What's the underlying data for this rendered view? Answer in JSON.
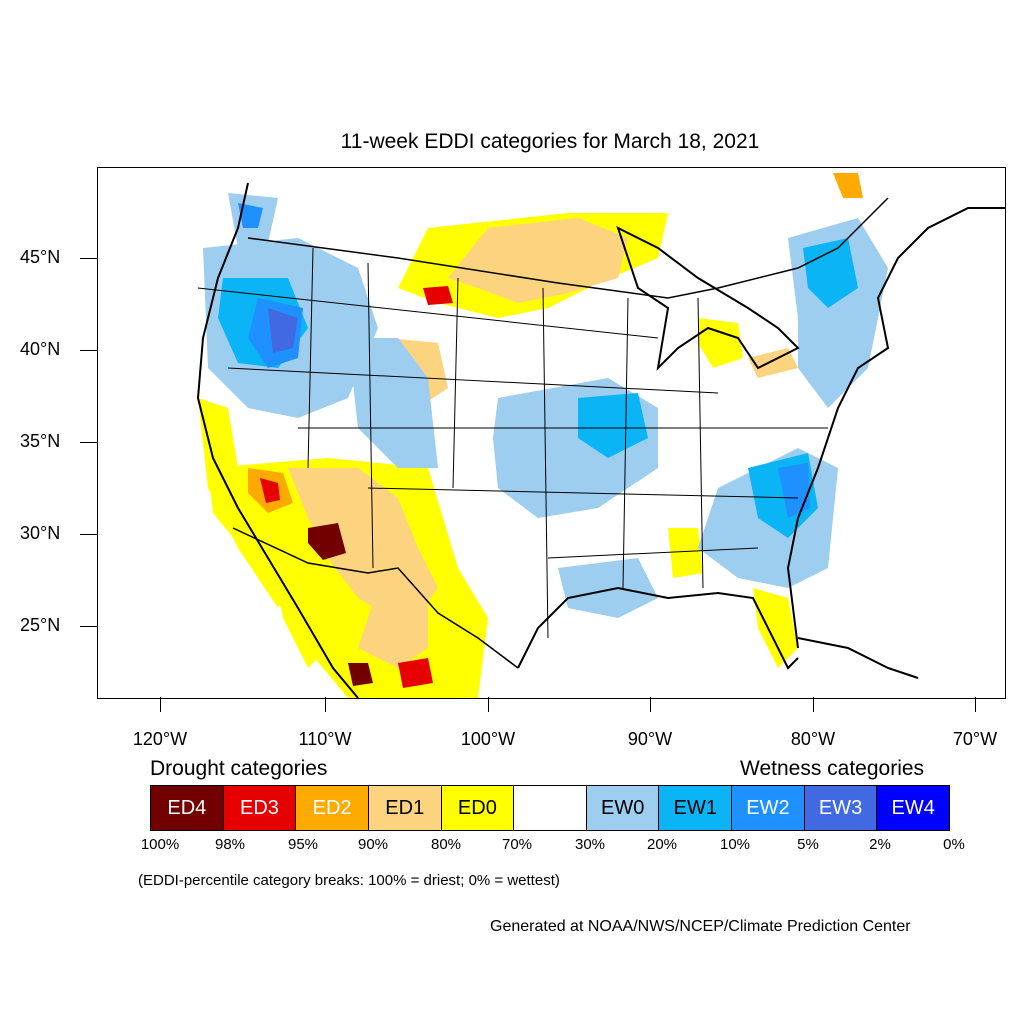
{
  "title": "11-week EDDI categories for March 18, 2021",
  "latitude_labels": [
    "45°N",
    "40°N",
    "35°N",
    "30°N",
    "25°N"
  ],
  "longitude_labels": [
    "120°W",
    "110°W",
    "100°W",
    "90°W",
    "80°W",
    "70°W"
  ],
  "legend": {
    "drought_heading": "Drought categories",
    "wetness_heading": "Wetness categories",
    "categories": [
      {
        "label": "ED4",
        "color": "#730000",
        "text_color": "#ffffff"
      },
      {
        "label": "ED3",
        "color": "#e60000",
        "text_color": "#ffffff"
      },
      {
        "label": "ED2",
        "color": "#ffaa00",
        "text_color": "#ffffff"
      },
      {
        "label": "ED1",
        "color": "#fcd37f",
        "text_color": "#000000"
      },
      {
        "label": "ED0",
        "color": "#ffff00",
        "text_color": "#000000"
      },
      {
        "label": "",
        "color": "#ffffff",
        "text_color": "#000000"
      },
      {
        "label": "EW0",
        "color": "#9dcdef",
        "text_color": "#000000"
      },
      {
        "label": "EW1",
        "color": "#0ab4f5",
        "text_color": "#000000"
      },
      {
        "label": "EW2",
        "color": "#1e90ff",
        "text_color": "#ffffff"
      },
      {
        "label": "EW3",
        "color": "#4169e1",
        "text_color": "#ffffff"
      },
      {
        "label": "EW4",
        "color": "#0000ff",
        "text_color": "#ffffff"
      }
    ],
    "percentile_breaks": [
      "100%",
      "98%",
      "95%",
      "90%",
      "80%",
      "70%",
      "30%",
      "20%",
      "10%",
      "5%",
      "2%",
      "0%"
    ]
  },
  "note": "(EDDI-percentile category breaks: 100% = driest; 0% = wettest)",
  "credit": "Generated at NOAA/NWS/NCEP/Climate Prediction Center"
}
